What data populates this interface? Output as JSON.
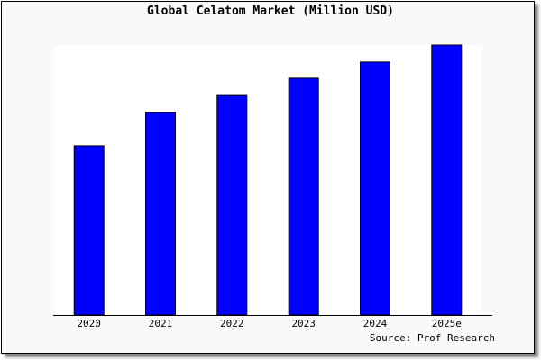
{
  "chart_data": {
    "type": "bar",
    "title": "Global Celatom Market (Million USD)",
    "categories": [
      "2020",
      "2021",
      "2022",
      "2023",
      "2024",
      "2025e"
    ],
    "values": [
      62.7,
      75.0,
      81.3,
      87.7,
      93.7,
      100
    ],
    "value_note_scale": "relative, 2025e = 100 (no y-axis printed)",
    "ylim": [
      0,
      100
    ],
    "xlabel": "",
    "ylabel": "",
    "grid": false,
    "bar_color": "#0000ff",
    "bar_edge_color": "#000000",
    "source": "Source: Prof Research"
  }
}
